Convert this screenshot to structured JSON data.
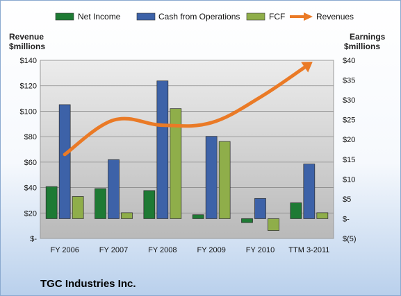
{
  "chart_data": {
    "type": "bar",
    "title": "TGC Industries Inc.",
    "categories": [
      "FY 2006",
      "FY 2007",
      "FY 2008",
      "FY 2009",
      "FY 2010",
      "TTM 3-2011"
    ],
    "series": [
      {
        "name": "Net Income",
        "type": "bar",
        "axis": "right",
        "color": "#1e7a34",
        "values": [
          8.1,
          7.6,
          7.1,
          1.0,
          -1.0,
          4.0
        ]
      },
      {
        "name": "Cash from Operations",
        "type": "bar",
        "axis": "right",
        "color": "#3d62a8",
        "values": [
          28.8,
          14.9,
          34.8,
          20.8,
          5.1,
          13.8
        ]
      },
      {
        "name": "FCF",
        "type": "bar",
        "axis": "right",
        "color": "#8fae4a",
        "values": [
          5.6,
          1.5,
          27.8,
          19.5,
          -3.0,
          1.5
        ]
      },
      {
        "name": "Revenues",
        "type": "line",
        "axis": "left",
        "color": "#ea7a26",
        "values": [
          66,
          93,
          89,
          91,
          111,
          137
        ]
      }
    ],
    "ylabel_left": [
      "Revenue",
      "$millions"
    ],
    "ylabel_right": [
      "Earnings",
      "$millions"
    ],
    "ylim_left": [
      0,
      140
    ],
    "ylim_right": [
      -5,
      40
    ],
    "yticks_left": [
      "$-",
      "$20",
      "$40",
      "$60",
      "$80",
      "$100",
      "$120",
      "$140"
    ],
    "yticks_right": [
      "$(5)",
      "$-",
      "$5",
      "$10",
      "$15",
      "$20",
      "$25",
      "$30",
      "$35",
      "$40"
    ],
    "legend_position": "top",
    "grid": true,
    "plot_background": "#c9c9c9"
  }
}
